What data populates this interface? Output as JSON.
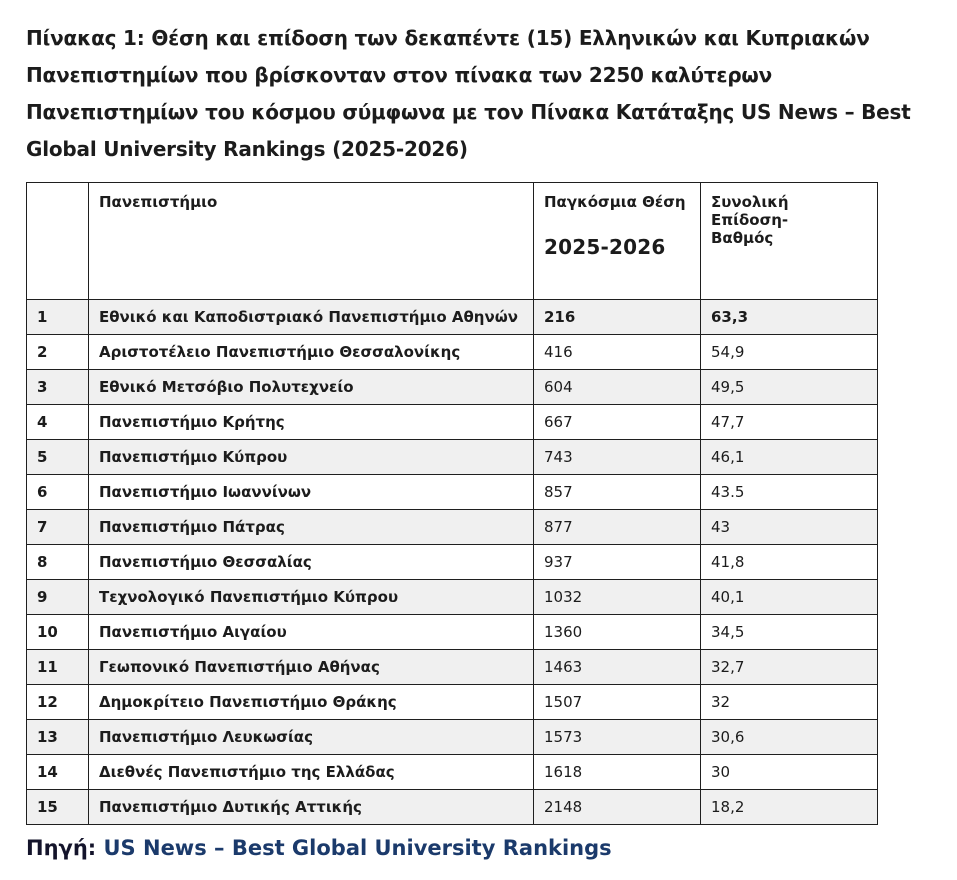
{
  "page": {
    "title": "Πίνακας 1: Θέση και επίδοση των δεκαπέντε (15) Ελληνικών και Κυπριακών Πανεπιστημίων που βρίσκονταν στον πίνακα των 2250 καλύτερων Πανεπιστημίων του κόσμου σύμφωνα με τον Πίνακα Κατάταξης  US News – Best Global University Rankings (2025-2026)",
    "footer": {
      "source_label": "Πηγή:",
      "source_link": "US News – Best Global University Rankings"
    }
  },
  "colors": {
    "text": "#1c1c1c",
    "link_navy": "#1b3a6b",
    "row_stripe": "#f0f0f0",
    "table_border": "#1f1f1f",
    "page_background": "#ffffff"
  },
  "table": {
    "headers": {
      "index": "",
      "university": "Πανεπιστήμιο",
      "world_rank_line1": "Παγκόσμια Θέση",
      "world_rank_line2": "2025-2026",
      "score_line1": "Συνολική Επίδοση-",
      "score_line2": "Βαθμός"
    },
    "rows": [
      {
        "no": "1",
        "university": "Εθνικό και Καποδιστριακό Πανεπιστήμιο Αθηνών",
        "rank": "216",
        "score": "63,3"
      },
      {
        "no": "2",
        "university": "Αριστοτέλειο Πανεπιστήμιο Θεσσαλονίκης",
        "rank": "416",
        "score": "54,9"
      },
      {
        "no": "3",
        "university": "Εθνικό Μετσόβιο Πολυτεχνείο",
        "rank": "604",
        "score": "49,5"
      },
      {
        "no": "4",
        "university": "Πανεπιστήμιο Κρήτης",
        "rank": "667",
        "score": "47,7"
      },
      {
        "no": "5",
        "university": "Πανεπιστήμιο Κύπρου",
        "rank": "743",
        "score": "46,1"
      },
      {
        "no": "6",
        "university": "Πανεπιστήμιο Ιωαννίνων",
        "rank": "857",
        "score": "43.5"
      },
      {
        "no": "7",
        "university": "Πανεπιστήμιο Πάτρας",
        "rank": "877",
        "score": "43"
      },
      {
        "no": "8",
        "university": "Πανεπιστήμιο Θεσσαλίας",
        "rank": "937",
        "score": "41,8"
      },
      {
        "no": "9",
        "university": "Τεχνολογικό Πανεπιστήμιο Κύπρου",
        "rank": "1032",
        "score": "40,1"
      },
      {
        "no": "10",
        "university": "Πανεπιστήμιο  Αιγαίου",
        "rank": "1360",
        "score": "34,5"
      },
      {
        "no": "11",
        "university": "Γεωπονικό Πανεπιστήμιο Αθήνας",
        "rank": "1463",
        "score": "32,7"
      },
      {
        "no": "12",
        "university": "Δημοκρίτειο Πανεπιστήμιο Θράκης",
        "rank": "1507",
        "score": "32"
      },
      {
        "no": "13",
        "university": "Πανεπιστήμιο Λευκωσίας",
        "rank": "1573",
        "score": "30,6"
      },
      {
        "no": "14",
        "university": "Διεθνές Πανεπιστήμιο της Ελλάδας",
        "rank": "1618",
        "score": "30"
      },
      {
        "no": "15",
        "university": "Πανεπιστήμιο Δυτικής Αττικής",
        "rank": "2148",
        "score": "18,2"
      }
    ]
  }
}
